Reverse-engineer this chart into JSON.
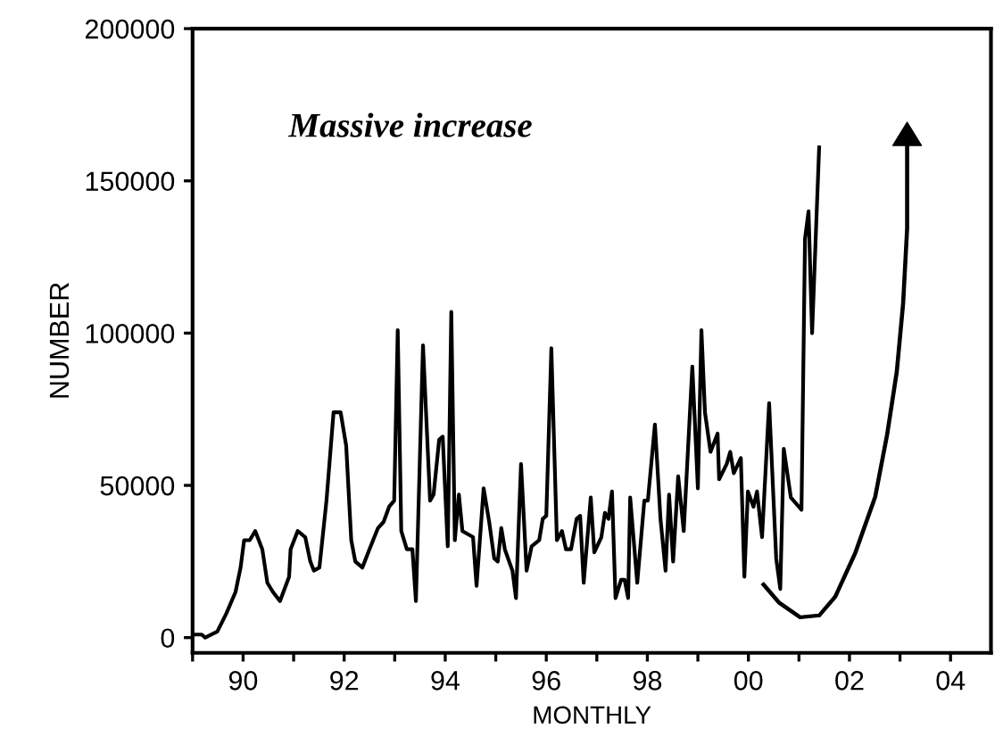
{
  "chart_data": {
    "type": "line",
    "xlabel": "MONTHLY",
    "ylabel": "NUMBER",
    "annotations": [
      "Massive increase"
    ],
    "x": [
      1989.0,
      1989.18,
      1989.25,
      1989.49,
      1989.67,
      1989.85,
      1989.95,
      1990.02,
      1990.13,
      1990.24,
      1990.38,
      1990.48,
      1990.59,
      1990.73,
      1990.91,
      1990.94,
      1991.08,
      1991.23,
      1991.33,
      1991.4,
      1991.51,
      1991.65,
      1991.79,
      1991.93,
      1992.04,
      1992.14,
      1992.22,
      1992.36,
      1992.5,
      1992.67,
      1992.78,
      1992.89,
      1992.99,
      1993.06,
      1993.13,
      1993.24,
      1993.35,
      1993.42,
      1993.56,
      1993.7,
      1993.77,
      1993.88,
      1993.95,
      1994.05,
      1994.12,
      1994.19,
      1994.27,
      1994.34,
      1994.55,
      1994.62,
      1994.76,
      1994.87,
      1994.97,
      1995.04,
      1995.11,
      1995.18,
      1995.33,
      1995.4,
      1995.5,
      1995.61,
      1995.71,
      1995.86,
      1995.93,
      1996.0,
      1996.1,
      1996.21,
      1996.31,
      1996.39,
      1996.49,
      1996.6,
      1996.67,
      1996.74,
      1996.88,
      1996.95,
      1997.09,
      1997.16,
      1997.23,
      1997.3,
      1997.37,
      1997.48,
      1997.55,
      1997.62,
      1997.66,
      1997.8,
      1997.94,
      1998.01,
      1998.15,
      1998.26,
      1998.36,
      1998.43,
      1998.51,
      1998.61,
      1998.72,
      1998.89,
      1999.0,
      1999.07,
      1999.14,
      1999.25,
      1999.39,
      1999.42,
      1999.57,
      1999.64,
      1999.71,
      1999.85,
      1999.92,
      1999.99,
      2000.1,
      2000.17,
      2000.27,
      2000.41,
      2000.55,
      2000.63,
      2000.7,
      2000.84,
      2001.05,
      2001.12,
      2001.19,
      2001.26,
      2001.4
    ],
    "series": [
      {
        "color": "#000000",
        "values": [
          1000,
          1000,
          0,
          2000,
          8000,
          15000,
          23000,
          32000,
          32000,
          35000,
          29000,
          18000,
          15000,
          12000,
          20000,
          29000,
          35000,
          33000,
          25000,
          22000,
          23000,
          45000,
          74000,
          74000,
          63000,
          32000,
          25000,
          23000,
          29000,
          36000,
          38000,
          43000,
          45000,
          101000,
          35000,
          29000,
          29000,
          12000,
          96000,
          45000,
          47000,
          65000,
          66000,
          30000,
          107000,
          32000,
          47000,
          35000,
          33000,
          17000,
          49000,
          38000,
          26000,
          25000,
          36000,
          29000,
          22000,
          13000,
          57000,
          22000,
          30000,
          32000,
          39000,
          40000,
          95000,
          32000,
          35000,
          29000,
          29000,
          39000,
          40000,
          18000,
          46000,
          28000,
          33000,
          41000,
          39000,
          48000,
          13000,
          19000,
          19000,
          13000,
          46000,
          18000,
          45000,
          45000,
          70000,
          39000,
          22000,
          47000,
          25000,
          53000,
          35000,
          89000,
          49000,
          101000,
          74000,
          61000,
          67000,
          52000,
          57000,
          61000,
          54000,
          59000,
          20000,
          48000,
          43000,
          48000,
          33000,
          77000,
          26000,
          16000,
          62000,
          46000,
          42000,
          131000,
          140000,
          100000,
          161000
        ]
      }
    ],
    "xlim": [
      1989,
      2004.8
    ],
    "xticks": [
      {
        "value": 1989,
        "label": null
      },
      {
        "value": 1990,
        "label": "90"
      },
      {
        "value": 1991,
        "label": null
      },
      {
        "value": 1992,
        "label": "92"
      },
      {
        "value": 1993,
        "label": null
      },
      {
        "value": 1994,
        "label": "94"
      },
      {
        "value": 1995,
        "label": null
      },
      {
        "value": 1996,
        "label": "96"
      },
      {
        "value": 1997,
        "label": null
      },
      {
        "value": 1998,
        "label": "98"
      },
      {
        "value": 1999,
        "label": null
      },
      {
        "value": 2000,
        "label": "00"
      },
      {
        "value": 2001,
        "label": null
      },
      {
        "value": 2002,
        "label": "02"
      },
      {
        "value": 2003,
        "label": null
      },
      {
        "value": 2004,
        "label": "04"
      }
    ],
    "ylim": [
      -5000,
      200000
    ],
    "yticks": [
      0,
      50000,
      100000,
      150000,
      200000
    ],
    "grid": false,
    "legend": false,
    "marker": "none",
    "line_style": "solid"
  }
}
